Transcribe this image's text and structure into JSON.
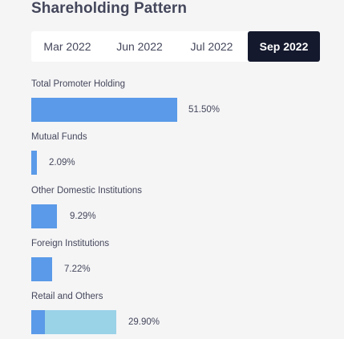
{
  "header": {
    "title": "Shareholding Pattern"
  },
  "tabs": [
    {
      "label": "Mar 2022"
    },
    {
      "label": "Jun 2022"
    },
    {
      "label": "Jul 2022"
    },
    {
      "label": "Sep 2022"
    }
  ],
  "active_tab_index": 3,
  "holdings": [
    {
      "label": "Total Promoter Holding",
      "value": "51.50%",
      "percent": 51.5
    },
    {
      "label": "Mutual Funds",
      "value": "2.09%",
      "percent": 2.09
    },
    {
      "label": "Other Domestic Institutions",
      "value": "9.29%",
      "percent": 9.29
    },
    {
      "label": "Foreign Institutions",
      "value": "7.22%",
      "percent": 7.22
    },
    {
      "label": "Retail and Others",
      "value": "29.90%",
      "percent": 29.9
    }
  ],
  "colors": {
    "bar": "#5a9ae8",
    "bar_secondary": "#9ad2e8",
    "active_tab_bg": "#14192e",
    "text": "#44475b"
  }
}
